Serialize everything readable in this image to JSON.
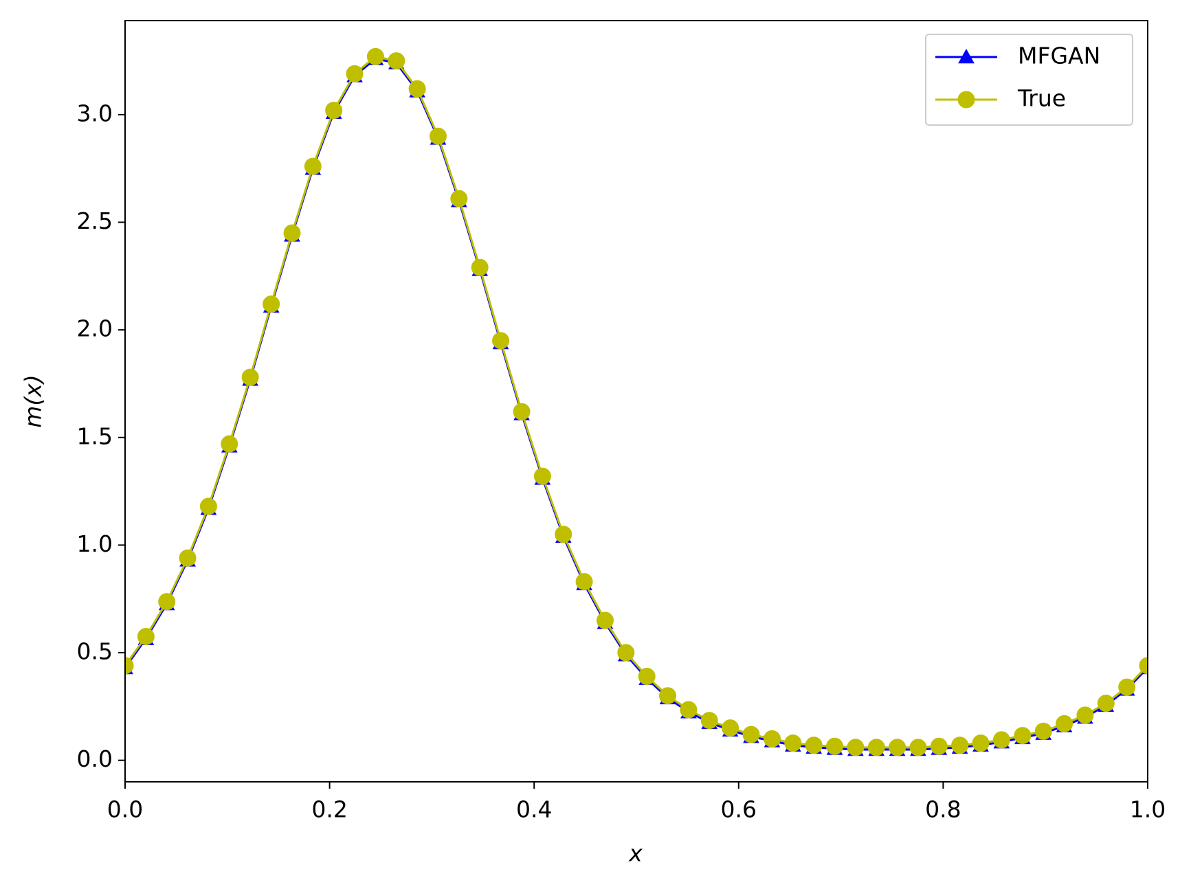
{
  "chart_data": {
    "type": "line",
    "xlabel": "x",
    "ylabel": "m(x)",
    "x": [
      0,
      0.0204,
      0.0408,
      0.0612,
      0.0816,
      0.102,
      0.1224,
      0.1429,
      0.1633,
      0.1837,
      0.2041,
      0.2245,
      0.2449,
      0.2653,
      0.2857,
      0.3061,
      0.3265,
      0.3469,
      0.3673,
      0.3878,
      0.4082,
      0.4286,
      0.449,
      0.4694,
      0.4898,
      0.5102,
      0.5306,
      0.551,
      0.5714,
      0.5918,
      0.6122,
      0.6327,
      0.6531,
      0.6735,
      0.6939,
      0.7143,
      0.7347,
      0.7551,
      0.7755,
      0.7959,
      0.8163,
      0.8367,
      0.8571,
      0.8776,
      0.898,
      0.9184,
      0.9388,
      0.9592,
      0.9796,
      1
    ],
    "series": [
      {
        "name": "MFGAN",
        "color": "#0000ff",
        "marker": "triangle",
        "values": [
          0.43,
          0.565,
          0.727,
          0.93,
          1.17,
          1.46,
          1.77,
          2.11,
          2.44,
          2.75,
          3.01,
          3.18,
          3.26,
          3.24,
          3.11,
          2.89,
          2.6,
          2.28,
          1.94,
          1.61,
          1.31,
          1.04,
          0.82,
          0.64,
          0.49,
          0.38,
          0.29,
          0.225,
          0.175,
          0.14,
          0.11,
          0.09,
          0.07,
          0.06,
          0.055,
          0.05,
          0.05,
          0.05,
          0.05,
          0.055,
          0.06,
          0.07,
          0.085,
          0.105,
          0.125,
          0.16,
          0.2,
          0.255,
          0.33,
          0.43
        ]
      },
      {
        "name": "True",
        "color": "#bfbf00",
        "marker": "circle",
        "values": [
          0.44,
          0.575,
          0.737,
          0.94,
          1.18,
          1.47,
          1.78,
          2.12,
          2.45,
          2.76,
          3.02,
          3.19,
          3.27,
          3.25,
          3.12,
          2.9,
          2.61,
          2.29,
          1.95,
          1.62,
          1.32,
          1.05,
          0.83,
          0.65,
          0.5,
          0.39,
          0.3,
          0.235,
          0.185,
          0.15,
          0.12,
          0.1,
          0.08,
          0.07,
          0.065,
          0.06,
          0.06,
          0.06,
          0.06,
          0.065,
          0.07,
          0.08,
          0.095,
          0.115,
          0.135,
          0.17,
          0.21,
          0.265,
          0.34,
          0.44
        ]
      }
    ],
    "xlim": [
      0,
      1
    ],
    "xticks": [
      {
        "value": 0,
        "label": "0.0"
      },
      0.2,
      0.4,
      0.6,
      0.8,
      {
        "value": 1,
        "label": "1.0"
      }
    ],
    "ylim": [
      -0.1,
      3.437
    ],
    "yticks": [
      {
        "value": 0,
        "label": "0.0"
      },
      0.5,
      {
        "value": 1,
        "label": "1.0"
      },
      1.5,
      {
        "value": 2,
        "label": "2.0"
      },
      2.5,
      {
        "value": 3,
        "label": "3.0"
      }
    ],
    "grid": false,
    "legend": "upper right"
  }
}
